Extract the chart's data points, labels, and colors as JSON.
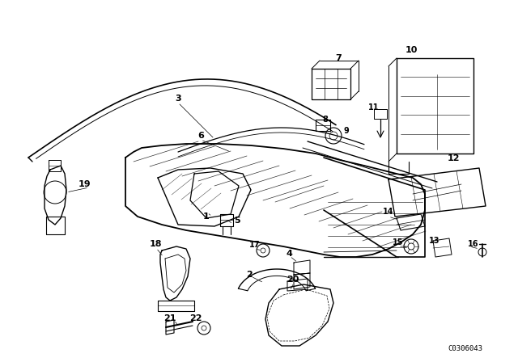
{
  "background_color": "#ffffff",
  "diagram_code": "C0306043",
  "line_color": "#000000",
  "label_fontsize": 8,
  "label_fontsize_small": 7
}
